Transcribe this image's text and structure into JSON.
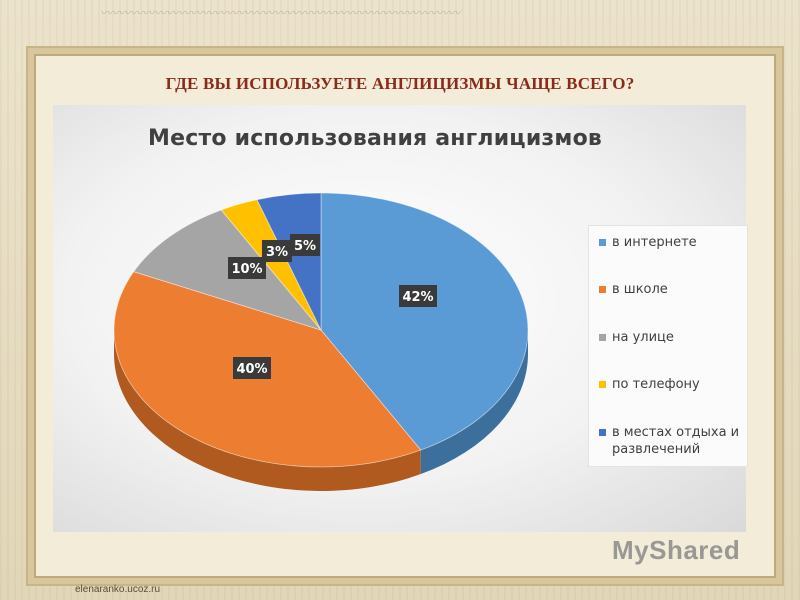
{
  "slide": {
    "title": "ГДЕ ВЫ ИСПОЛЬЗУЕТЕ АНГЛИЦИЗМЫ ЧАЩЕ ВСЕГО?",
    "footer": "elenaranko.ucoz.ru",
    "watermark": "MyShared"
  },
  "chart_data": {
    "type": "pie",
    "title": "Место использования англицизмов",
    "categories": [
      "в интернете",
      "в школе",
      "на улице",
      "по телефону",
      "в местах отдыха и развлечений"
    ],
    "values": [
      42,
      40,
      10,
      3,
      5
    ],
    "data_labels": [
      "42%",
      "40%",
      "10%",
      "3%",
      "5%"
    ],
    "colors": [
      "#5b9bd5",
      "#ed7d31",
      "#a5a5a5",
      "#ffc000",
      "#4472c4"
    ],
    "side_colors": [
      "#3d6f9c",
      "#b05a1f",
      "#787878",
      "#bf9000",
      "#2f528f"
    ],
    "legend_position": "right",
    "style": "3d"
  }
}
